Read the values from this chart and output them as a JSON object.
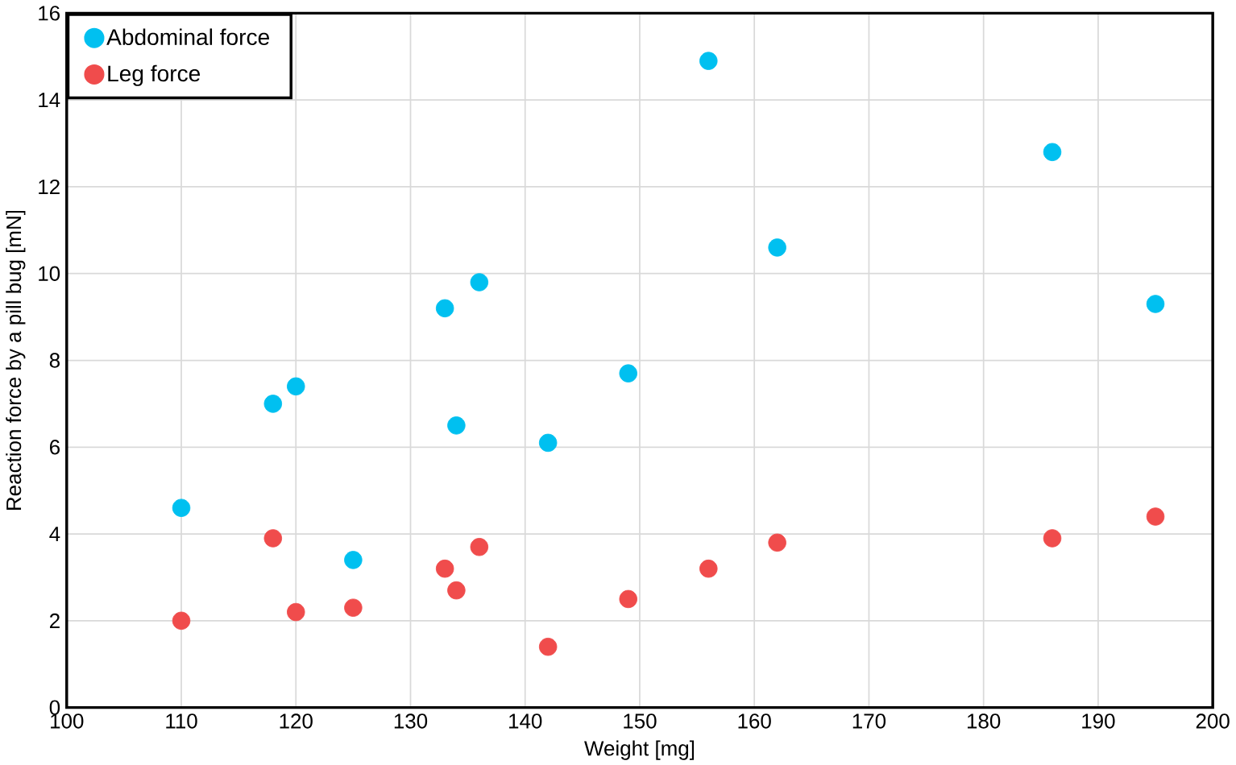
{
  "chart_data": {
    "type": "scatter",
    "xlabel": "Weight [mg]",
    "ylabel": "Reaction force by a pill bug [mN]",
    "x": [
      110,
      118,
      120,
      125,
      133,
      134,
      136,
      142,
      149,
      156,
      162,
      186,
      195
    ],
    "series": [
      {
        "name": "Abdominal force",
        "color": "#00c0f0",
        "values": [
          4.6,
          7.0,
          7.4,
          3.4,
          9.2,
          6.5,
          9.8,
          6.1,
          7.7,
          14.9,
          10.6,
          12.8,
          9.3
        ]
      },
      {
        "name": "Leg force",
        "color": "#f04c4c",
        "values": [
          2.0,
          3.9,
          2.2,
          2.3,
          3.2,
          2.7,
          3.7,
          1.4,
          2.5,
          3.2,
          3.8,
          3.9,
          4.4
        ]
      }
    ],
    "xlim": [
      100,
      200
    ],
    "xticks": [
      100,
      110,
      120,
      130,
      140,
      150,
      160,
      170,
      180,
      190,
      200
    ],
    "ylim": [
      0,
      16
    ],
    "yticks": [
      0,
      2,
      4,
      6,
      8,
      10,
      12,
      14,
      16
    ],
    "grid": true,
    "legend": "top left",
    "marker": "circle"
  }
}
